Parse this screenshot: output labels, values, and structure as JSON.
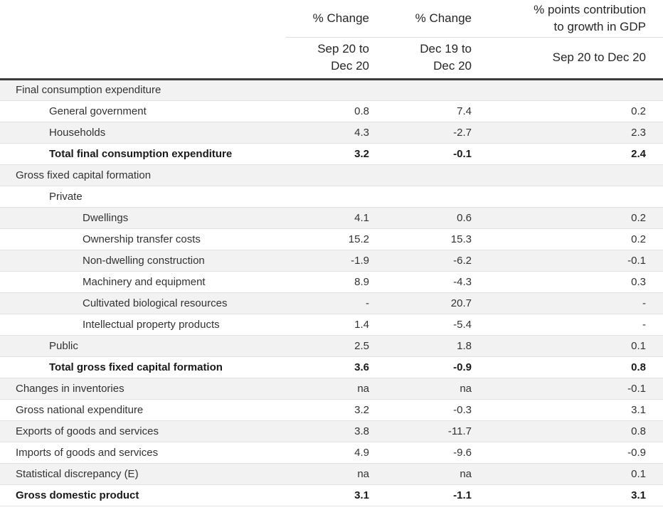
{
  "colors": {
    "stripe": "#f2f2f2",
    "row_border": "#e2e2e2",
    "header_rule": "#3b3b3b",
    "light_rule": "#dcdcdc",
    "text": "#323232",
    "text_strong": "#1a1a1a"
  },
  "chart_data": {
    "type": "table",
    "header": {
      "col2_title": "% Change",
      "col2_period_line1": "Sep 20 to",
      "col2_period_line2": "Dec 20",
      "col3_title": "% Change",
      "col3_period_line1": "Dec 19 to",
      "col3_period_line2": "Dec 20",
      "col4_title_line1": "% points contribution",
      "col4_title_line2": "to growth in GDP",
      "col4_period": "Sep 20 to Dec 20"
    },
    "columns": [
      "",
      "% Change Sep 20 to Dec 20",
      "% Change Dec 19 to Dec 20",
      "% points contribution to growth in GDP Sep 20 to Dec 20"
    ],
    "rows": [
      {
        "label": "Final consumption expenditure",
        "indent": 0,
        "bold": false,
        "values": [
          "",
          "",
          ""
        ]
      },
      {
        "label": "General government",
        "indent": 1,
        "bold": false,
        "values": [
          "0.8",
          "7.4",
          "0.2"
        ]
      },
      {
        "label": "Households",
        "indent": 1,
        "bold": false,
        "values": [
          "4.3",
          "-2.7",
          "2.3"
        ]
      },
      {
        "label": "Total final consumption expenditure",
        "indent": 1,
        "bold": true,
        "values": [
          "3.2",
          "-0.1",
          "2.4"
        ]
      },
      {
        "label": "Gross fixed capital formation",
        "indent": 0,
        "bold": false,
        "values": [
          "",
          "",
          ""
        ]
      },
      {
        "label": "Private",
        "indent": 1,
        "bold": false,
        "values": [
          "",
          "",
          ""
        ]
      },
      {
        "label": "Dwellings",
        "indent": 2,
        "bold": false,
        "values": [
          "4.1",
          "0.6",
          "0.2"
        ]
      },
      {
        "label": "Ownership transfer costs",
        "indent": 2,
        "bold": false,
        "values": [
          "15.2",
          "15.3",
          "0.2"
        ]
      },
      {
        "label": "Non-dwelling construction",
        "indent": 2,
        "bold": false,
        "values": [
          "-1.9",
          "-6.2",
          "-0.1"
        ]
      },
      {
        "label": "Machinery and equipment",
        "indent": 2,
        "bold": false,
        "values": [
          "8.9",
          "-4.3",
          "0.3"
        ]
      },
      {
        "label": "Cultivated biological resources",
        "indent": 2,
        "bold": false,
        "values": [
          "-",
          "20.7",
          "-"
        ]
      },
      {
        "label": "Intellectual property products",
        "indent": 2,
        "bold": false,
        "values": [
          "1.4",
          "-5.4",
          "-"
        ]
      },
      {
        "label": "Public",
        "indent": 1,
        "bold": false,
        "values": [
          "2.5",
          "1.8",
          "0.1"
        ]
      },
      {
        "label": "Total gross fixed capital formation",
        "indent": 1,
        "bold": true,
        "values": [
          "3.6",
          "-0.9",
          "0.8"
        ]
      },
      {
        "label": "Changes in inventories",
        "indent": 0,
        "bold": false,
        "values": [
          "na",
          "na",
          "-0.1"
        ]
      },
      {
        "label": "Gross national expenditure",
        "indent": 0,
        "bold": false,
        "values": [
          "3.2",
          "-0.3",
          "3.1"
        ]
      },
      {
        "label": "Exports of goods and services",
        "indent": 0,
        "bold": false,
        "values": [
          "3.8",
          "-11.7",
          "0.8"
        ]
      },
      {
        "label": "Imports of goods and services",
        "indent": 0,
        "bold": false,
        "values": [
          "4.9",
          "-9.6",
          "-0.9"
        ]
      },
      {
        "label": "Statistical discrepancy (E)",
        "indent": 0,
        "bold": false,
        "values": [
          "na",
          "na",
          "0.1"
        ]
      },
      {
        "label": "Gross domestic product",
        "indent": 0,
        "bold": true,
        "values": [
          "3.1",
          "-1.1",
          "3.1"
        ]
      }
    ]
  }
}
